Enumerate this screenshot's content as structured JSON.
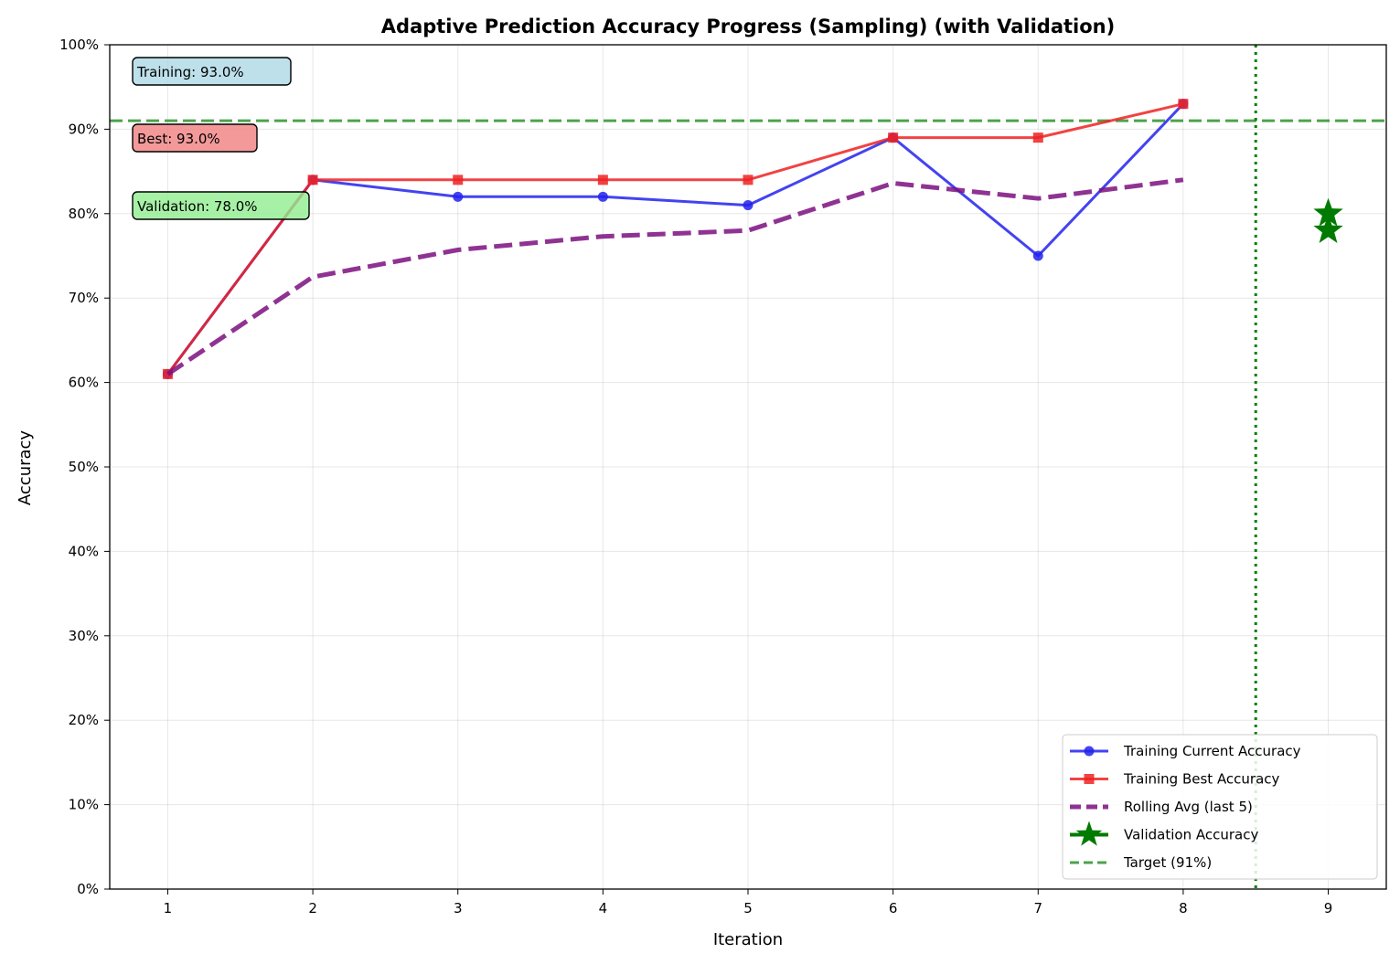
{
  "chart_data": {
    "type": "line",
    "title": "Adaptive Prediction Accuracy Progress (Sampling) (with Validation)",
    "xlabel": "Iteration",
    "ylabel": "Accuracy",
    "xlim": [
      0.6,
      9.4
    ],
    "ylim": [
      0,
      100
    ],
    "x_ticks": [
      1,
      2,
      3,
      4,
      5,
      6,
      7,
      8,
      9
    ],
    "y_ticks": [
      0,
      10,
      20,
      30,
      40,
      50,
      60,
      70,
      80,
      90,
      100
    ],
    "y_tick_labels": [
      "0%",
      "10%",
      "20%",
      "30%",
      "40%",
      "50%",
      "60%",
      "70%",
      "80%",
      "90%",
      "100%"
    ],
    "grid": true,
    "legend_position": "lower-right",
    "series": [
      {
        "name": "Training Current Accuracy",
        "color": "#2222ee",
        "style": "solid",
        "marker": "circle",
        "x": [
          1,
          2,
          3,
          4,
          5,
          6,
          7,
          8
        ],
        "values": [
          61,
          84,
          82,
          82,
          81,
          89,
          75,
          93
        ]
      },
      {
        "name": "Training Best Accuracy",
        "color": "#ee2222",
        "style": "solid",
        "marker": "square",
        "x": [
          1,
          2,
          3,
          4,
          5,
          6,
          7,
          8
        ],
        "values": [
          61,
          84,
          84,
          84,
          84,
          89,
          89,
          93
        ]
      },
      {
        "name": "Rolling Avg (last 5)",
        "color": "#7b0f80",
        "style": "dashed",
        "marker": "none",
        "x": [
          1,
          2,
          3,
          4,
          5,
          6,
          7,
          8
        ],
        "values": [
          61,
          72.5,
          75.7,
          77.3,
          78.0,
          83.6,
          81.8,
          84.0
        ]
      },
      {
        "name": "Validation Accuracy",
        "color": "#007a00",
        "style": "marker-only",
        "marker": "star",
        "x": [
          9,
          9
        ],
        "values": [
          80,
          78
        ]
      }
    ],
    "reference_lines": [
      {
        "name": "Target (91%)",
        "orientation": "horizontal",
        "value": 91,
        "color": "#3a9a3a",
        "style": "dashed"
      },
      {
        "name": "",
        "orientation": "vertical",
        "value": 8.5,
        "color": "#008000",
        "style": "dotted"
      }
    ],
    "annotations": [
      {
        "text": "Training: 93.0%",
        "bg": "#add8e6"
      },
      {
        "text": "Best: 93.0%",
        "bg": "#f08080"
      },
      {
        "text": "Validation: 78.0%",
        "bg": "#90ee90"
      }
    ]
  }
}
